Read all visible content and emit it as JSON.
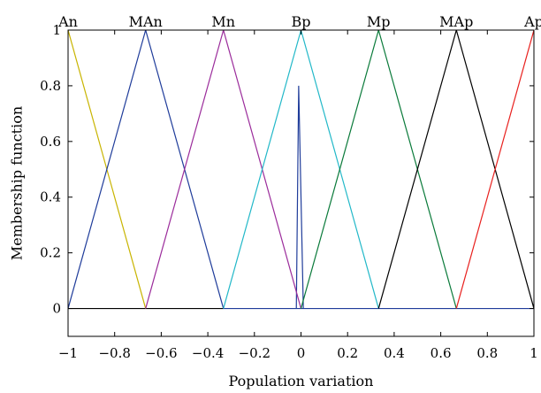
{
  "chart_data": {
    "type": "line",
    "xlabel": "Population variation",
    "ylabel": "Membership function",
    "xlim": [
      -1,
      1
    ],
    "ylim": [
      -0.1,
      1
    ],
    "grid": false,
    "x_ticks": [
      -1,
      -0.8,
      -0.6,
      -0.4,
      -0.2,
      0,
      0.2,
      0.4,
      0.6,
      0.8,
      1
    ],
    "x_tick_labels": [
      "−1",
      "−0.8",
      "−0.6",
      "−0.4",
      "−0.2",
      "0",
      "0.2",
      "0.4",
      "0.6",
      "0.8",
      "1"
    ],
    "y_ticks": [
      0,
      0.2,
      0.4,
      0.6,
      0.8,
      1
    ],
    "y_tick_labels": [
      "0",
      "0.2",
      "0.4",
      "0.6",
      "0.8",
      "1"
    ],
    "series": [
      {
        "name": "An",
        "color": "#c8b400",
        "points": [
          [
            -1,
            1
          ],
          [
            -0.667,
            0
          ]
        ]
      },
      {
        "name": "MAn",
        "color": "#1f3c9a",
        "points": [
          [
            -1,
            0
          ],
          [
            -0.667,
            1
          ],
          [
            -0.333,
            0
          ]
        ]
      },
      {
        "name": "Mn",
        "color": "#9b2c9b",
        "points": [
          [
            -0.667,
            0
          ],
          [
            -0.333,
            1
          ],
          [
            0,
            0
          ]
        ]
      },
      {
        "name": "Bp",
        "color": "#22b8c8",
        "points": [
          [
            -0.333,
            0
          ],
          [
            0,
            1
          ],
          [
            0.333,
            0
          ]
        ]
      },
      {
        "name": "Mp",
        "color": "#0a7a3a",
        "points": [
          [
            0,
            0
          ],
          [
            0.333,
            1
          ],
          [
            0.667,
            0
          ]
        ]
      },
      {
        "name": "MAp",
        "color": "#000000",
        "points": [
          [
            0.333,
            0
          ],
          [
            0.667,
            1
          ],
          [
            1,
            0
          ]
        ]
      },
      {
        "name": "Ap",
        "color": "#e8201e",
        "points": [
          [
            0.667,
            0
          ],
          [
            1,
            1
          ]
        ]
      }
    ],
    "extra_lines": [
      {
        "color": "#1f3c9a",
        "points": [
          [
            -0.02,
            0
          ],
          [
            -0.01,
            0.8
          ],
          [
            0.01,
            0
          ]
        ]
      },
      {
        "color": "#000000",
        "points": [
          [
            -1,
            0
          ],
          [
            -0.333,
            0
          ]
        ]
      },
      {
        "color": "#1f3c9a",
        "points": [
          [
            -0.333,
            0
          ],
          [
            1,
            0
          ]
        ]
      }
    ]
  }
}
